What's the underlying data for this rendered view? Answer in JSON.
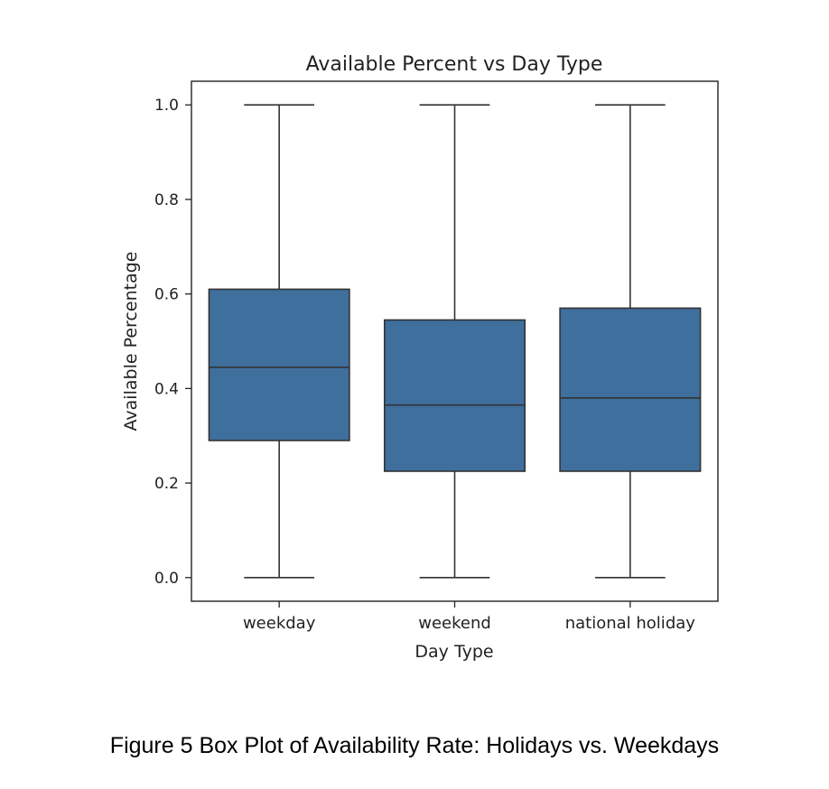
{
  "chart_data": {
    "type": "box",
    "title": "Available Percent vs Day Type",
    "xlabel": "Day Type",
    "ylabel": "Available Percentage",
    "ylim": [
      -0.05,
      1.05
    ],
    "yticks": [
      0.0,
      0.2,
      0.4,
      0.6,
      0.8,
      1.0
    ],
    "ytick_labels": [
      "0.0",
      "0.2",
      "0.4",
      "0.6",
      "0.8",
      "1.0"
    ],
    "categories": [
      "weekday",
      "weekend",
      "national holiday"
    ],
    "boxes": [
      {
        "category": "weekday",
        "min": 0.0,
        "q1": 0.29,
        "median": 0.445,
        "q3": 0.61,
        "max": 1.0
      },
      {
        "category": "weekend",
        "min": 0.0,
        "q1": 0.225,
        "median": 0.365,
        "q3": 0.545,
        "max": 1.0
      },
      {
        "category": "national holiday",
        "min": 0.0,
        "q1": 0.225,
        "median": 0.38,
        "q3": 0.57,
        "max": 1.0
      }
    ],
    "grid": false,
    "colors": {
      "box_fill": "#3f6f9c",
      "line": "#333333",
      "axis": "#222222"
    }
  },
  "caption": "Figure 5 Box Plot of Availability Rate: Holidays vs. Weekdays"
}
